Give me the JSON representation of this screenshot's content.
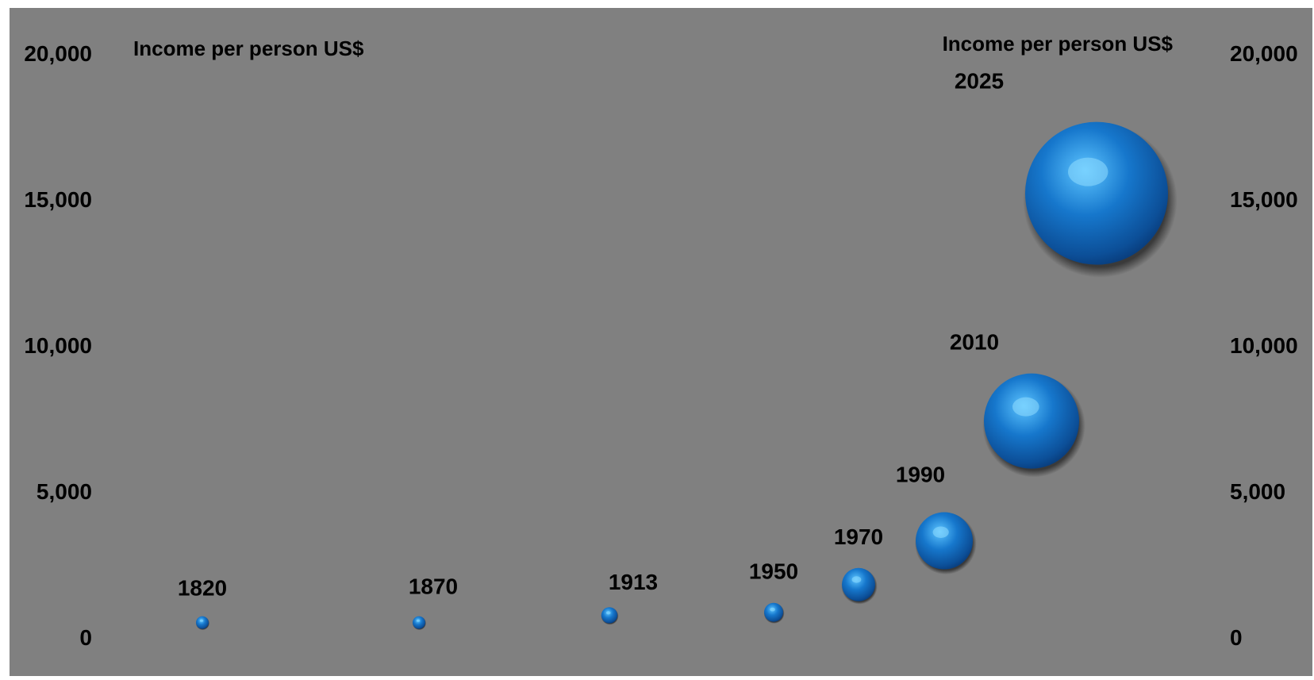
{
  "chart_data": {
    "type": "scatter",
    "title": "",
    "left_axis_label": "Income per person US$",
    "right_axis_label": "Income per person US$",
    "ylim": [
      0,
      20000
    ],
    "yticks": [
      0,
      5000,
      10000,
      15000,
      20000
    ],
    "ytick_labels": [
      "0",
      "5,000",
      "10,000",
      "15,000",
      "20,000"
    ],
    "grid": false,
    "legend": "none",
    "colors": {
      "background": "#808080",
      "bubble": "#1677cc",
      "bubble_light": "#5cc4ff",
      "bubble_dark": "#083a78",
      "text": "#000000"
    },
    "points": [
      {
        "label": "1820",
        "year": 1820,
        "value": 500,
        "size": 0.12
      },
      {
        "label": "1870",
        "year": 1870,
        "value": 500,
        "size": 0.12
      },
      {
        "label": "1913",
        "year": 1913,
        "value": 750,
        "size": 0.17
      },
      {
        "label": "1950",
        "year": 1950,
        "value": 850,
        "size": 0.2
      },
      {
        "label": "1970",
        "year": 1970,
        "value": 1800,
        "size": 0.35
      },
      {
        "label": "1990",
        "year": 1990,
        "value": 3300,
        "size": 0.6
      },
      {
        "label": "2010",
        "year": 2010,
        "value": 7400,
        "size": 1.0
      },
      {
        "label": "2025",
        "year": 2025,
        "value": 15200,
        "size": 1.5
      }
    ]
  }
}
